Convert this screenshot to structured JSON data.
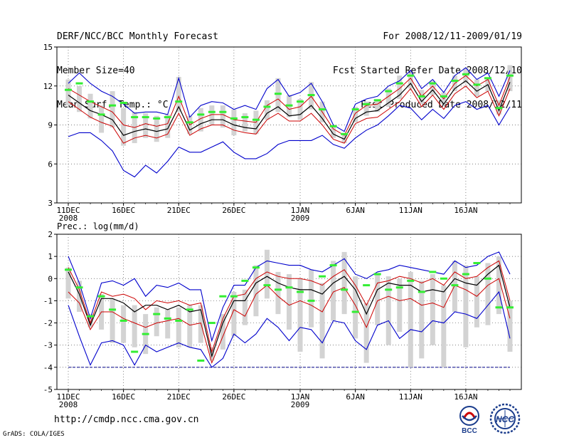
{
  "header": {
    "left": [
      "DERF/NCC/BCC Monthly Forecast",
      "Member Size=40",
      "Mean Surf. Temp.: °C"
    ],
    "right": [
      "For 2008/12/11-2009/01/19",
      "Fcst Started Refer Date 2008/12/10",
      "Fcst Produced Date 2008/12/11"
    ]
  },
  "footer": {
    "url": "http://cmdp.ncc.cma.gov.cn",
    "grads": "GrADS: COLA/IGES",
    "logo_left_text": "BCC",
    "logo_right_text": "NCC"
  },
  "colors": {
    "max_min": "#0000cc",
    "spread": "#cc0000",
    "mean": "#000000",
    "obs": "#33ee33",
    "box": "#d3d3d3",
    "zero_line": "#000088"
  },
  "chart_data": [
    {
      "type": "line",
      "title": "Mean Surf. Temp.: °C",
      "ylim": [
        3,
        15
      ],
      "yticks": [
        3,
        6,
        9,
        12,
        15
      ],
      "xticks": [
        {
          "day": 0,
          "label": "11DEC",
          "sub": "2008"
        },
        {
          "day": 5,
          "label": "16DEC",
          "sub": ""
        },
        {
          "day": 10,
          "label": "21DEC",
          "sub": ""
        },
        {
          "day": 15,
          "label": "26DEC",
          "sub": ""
        },
        {
          "day": 21,
          "label": "1JAN",
          "sub": "2009"
        },
        {
          "day": 26,
          "label": "6JAN",
          "sub": ""
        },
        {
          "day": 31,
          "label": "11JAN",
          "sub": ""
        },
        {
          "day": 36,
          "label": "16JAN",
          "sub": ""
        }
      ],
      "days": 40,
      "series": [
        {
          "name": "max",
          "values": [
            12.2,
            13.0,
            12.2,
            11.6,
            11.2,
            10.6,
            9.9,
            10.0,
            10.0,
            9.8,
            12.6,
            9.6,
            10.5,
            10.8,
            10.7,
            10.2,
            10.5,
            10.2,
            11.8,
            12.5,
            11.2,
            11.5,
            12.2,
            10.8,
            9.0,
            8.5,
            10.6,
            11.0,
            11.2,
            12.0,
            12.4,
            13.2,
            11.8,
            12.5,
            11.5,
            12.8,
            13.4,
            12.5,
            13.0,
            11.2,
            13.2
          ]
        },
        {
          "name": "upper",
          "values": [
            11.8,
            11.3,
            10.8,
            10.4,
            10.0,
            9.0,
            8.8,
            9.1,
            8.9,
            9.1,
            11.2,
            9.0,
            9.5,
            9.8,
            9.8,
            9.4,
            9.3,
            9.2,
            10.5,
            11.0,
            10.2,
            10.4,
            11.2,
            10.0,
            8.7,
            8.2,
            9.9,
            10.5,
            10.6,
            11.2,
            11.8,
            12.6,
            11.2,
            12.0,
            11.0,
            12.2,
            12.8,
            12.0,
            12.5,
            10.5,
            12.7
          ]
        },
        {
          "name": "mean",
          "values": [
            11.3,
            10.7,
            10.1,
            9.8,
            9.4,
            8.2,
            8.5,
            8.7,
            8.5,
            8.7,
            10.4,
            8.6,
            9.1,
            9.4,
            9.4,
            9.0,
            8.8,
            8.7,
            9.9,
            10.4,
            9.7,
            9.8,
            10.5,
            9.5,
            8.3,
            7.9,
            9.5,
            10.0,
            10.1,
            10.7,
            11.3,
            12.2,
            10.8,
            11.7,
            10.6,
            11.8,
            12.4,
            11.6,
            12.1,
            10.1,
            12.3
          ]
        },
        {
          "name": "lower",
          "values": [
            10.8,
            10.2,
            9.6,
            9.2,
            8.9,
            7.6,
            8.0,
            8.2,
            8.0,
            8.3,
            9.9,
            8.2,
            8.7,
            9.0,
            9.0,
            8.6,
            8.4,
            8.3,
            9.4,
            9.9,
            9.3,
            9.3,
            9.9,
            9.0,
            7.9,
            7.6,
            9.1,
            9.5,
            9.6,
            10.2,
            10.8,
            11.8,
            10.4,
            11.3,
            10.2,
            11.4,
            12.0,
            11.1,
            11.6,
            9.7,
            11.8
          ]
        },
        {
          "name": "min",
          "values": [
            8.1,
            8.4,
            8.4,
            7.8,
            7.0,
            5.5,
            5.0,
            5.9,
            5.3,
            6.2,
            7.3,
            6.9,
            6.9,
            7.3,
            7.7,
            6.9,
            6.4,
            6.4,
            6.8,
            7.5,
            7.8,
            7.8,
            7.8,
            8.2,
            7.5,
            7.2,
            8.0,
            8.6,
            9.0,
            9.7,
            10.5,
            10.3,
            9.4,
            10.2,
            9.5,
            10.5,
            10.8,
            10.2,
            10.5,
            9.0,
            10.4
          ]
        }
      ],
      "boxes": [
        [
          10.5,
          12.5
        ],
        [
          10.0,
          12.0
        ],
        [
          9.5,
          11.4
        ],
        [
          8.4,
          10.5
        ],
        [
          8.8,
          11.6
        ],
        [
          7.4,
          10.3
        ],
        [
          7.6,
          10.0
        ],
        [
          8.0,
          9.9
        ],
        [
          7.7,
          9.7
        ],
        [
          8.0,
          9.8
        ],
        [
          10.0,
          12.7
        ],
        [
          8.3,
          9.7
        ],
        [
          8.5,
          10.3
        ],
        [
          9.0,
          10.5
        ],
        [
          8.8,
          10.5
        ],
        [
          8.2,
          10.2
        ],
        [
          8.5,
          9.9
        ],
        [
          8.3,
          10.1
        ],
        [
          9.4,
          10.9
        ],
        [
          10.0,
          12.6
        ],
        [
          9.6,
          11.3
        ],
        [
          9.4,
          11.0
        ],
        [
          10.2,
          12.3
        ],
        [
          9.2,
          10.8
        ],
        [
          8.0,
          9.0
        ],
        [
          7.6,
          8.3
        ],
        [
          9.2,
          10.4
        ],
        [
          9.7,
          10.8
        ],
        [
          10.0,
          10.9
        ],
        [
          10.4,
          11.8
        ],
        [
          11.0,
          12.8
        ],
        [
          11.8,
          13.0
        ],
        [
          10.6,
          11.7
        ],
        [
          11.3,
          12.4
        ],
        [
          10.6,
          11.5
        ],
        [
          11.6,
          12.8
        ],
        [
          12.2,
          13.4
        ],
        [
          11.2,
          12.5
        ],
        [
          11.6,
          12.6
        ],
        [
          9.8,
          10.9
        ],
        [
          11.6,
          13.6
        ]
      ],
      "obs": [
        11.7,
        12.2,
        10.8,
        9.8,
        10.5,
        10.7,
        9.6,
        9.6,
        9.5,
        9.6,
        10.8,
        9.2,
        9.8,
        10.0,
        10.0,
        9.5,
        9.6,
        9.4,
        10.4,
        11.4,
        10.5,
        10.8,
        11.3,
        10.2,
        8.9,
        8.3,
        10.2,
        10.6,
        10.9,
        11.6,
        12.2,
        12.8,
        11.2,
        12.2,
        11.2,
        12.4,
        12.9,
        12.1,
        12.6,
        10.3,
        12.8
      ]
    },
    {
      "type": "line",
      "title": "Prec.: log(mm/d)",
      "ylim": [
        -5,
        2
      ],
      "yticks": [
        -5,
        -4,
        -3,
        -2,
        -1,
        0,
        1,
        2
      ],
      "xticks": [
        {
          "day": 0,
          "label": "11DEC",
          "sub": "2008"
        },
        {
          "day": 5,
          "label": "16DEC",
          "sub": ""
        },
        {
          "day": 10,
          "label": "21DEC",
          "sub": ""
        },
        {
          "day": 15,
          "label": "26DEC",
          "sub": ""
        },
        {
          "day": 21,
          "label": "1JAN",
          "sub": "2009"
        },
        {
          "day": 26,
          "label": "6JAN",
          "sub": ""
        },
        {
          "day": 31,
          "label": "11JAN",
          "sub": ""
        },
        {
          "day": 36,
          "label": "16JAN",
          "sub": ""
        }
      ],
      "days": 40,
      "baseline": -4,
      "series": [
        {
          "name": "max",
          "values": [
            1.0,
            -0.2,
            -1.8,
            -0.2,
            -0.1,
            -0.3,
            0.0,
            -0.8,
            -0.3,
            -0.4,
            -0.2,
            -0.5,
            -0.5,
            -2.8,
            -1.3,
            -0.3,
            -0.3,
            0.5,
            0.8,
            0.7,
            0.6,
            0.6,
            0.4,
            0.3,
            0.6,
            0.9,
            0.2,
            0.0,
            0.3,
            0.4,
            0.6,
            0.5,
            0.4,
            0.3,
            0.2,
            0.8,
            0.5,
            0.6,
            1.0,
            1.2,
            0.2
          ]
        },
        {
          "name": "upper",
          "values": [
            0.5,
            -0.5,
            -2.0,
            -0.6,
            -0.8,
            -0.7,
            -0.9,
            -1.4,
            -1.0,
            -1.1,
            -1.0,
            -1.2,
            -1.1,
            -3.3,
            -1.8,
            -0.8,
            -0.7,
            0.0,
            0.3,
            0.1,
            0.0,
            0.0,
            -0.1,
            -0.3,
            0.1,
            0.4,
            -0.3,
            -1.2,
            -0.2,
            -0.1,
            0.1,
            0.0,
            -0.2,
            0.0,
            -0.3,
            0.3,
            0.0,
            0.1,
            0.5,
            0.8,
            -1.0
          ]
        },
        {
          "name": "mean",
          "values": [
            0.3,
            -0.7,
            -2.1,
            -0.9,
            -0.9,
            -1.1,
            -1.5,
            -1.2,
            -1.2,
            -1.4,
            -1.2,
            -1.5,
            -1.4,
            -3.5,
            -2.0,
            -1.0,
            -1.0,
            -0.2,
            0.1,
            -0.2,
            -0.4,
            -0.5,
            -0.5,
            -0.7,
            -0.2,
            0.1,
            -0.5,
            -1.6,
            -0.5,
            -0.2,
            -0.3,
            -0.3,
            -0.6,
            -0.5,
            -0.6,
            0.0,
            -0.2,
            -0.3,
            0.2,
            0.6,
            -1.3
          ]
        },
        {
          "name": "lower",
          "values": [
            -0.6,
            -1.1,
            -2.3,
            -1.5,
            -1.5,
            -1.8,
            -2.0,
            -2.2,
            -2.0,
            -1.9,
            -1.8,
            -2.1,
            -2.0,
            -3.8,
            -2.6,
            -1.4,
            -1.7,
            -0.7,
            -0.3,
            -0.8,
            -1.2,
            -1.0,
            -1.2,
            -1.5,
            -0.6,
            -0.4,
            -1.2,
            -2.2,
            -1.0,
            -0.8,
            -1.0,
            -0.9,
            -1.2,
            -1.1,
            -1.3,
            -0.3,
            -0.5,
            -0.8,
            -0.3,
            0.0,
            -1.8
          ]
        },
        {
          "name": "min",
          "values": [
            -1.2,
            -2.6,
            -3.9,
            -2.9,
            -2.8,
            -3.0,
            -3.9,
            -3.0,
            -3.3,
            -3.1,
            -2.9,
            -3.1,
            -3.2,
            -4.0,
            -3.6,
            -2.5,
            -2.9,
            -2.5,
            -1.8,
            -2.2,
            -2.8,
            -2.2,
            -2.3,
            -2.9,
            -1.9,
            -2.0,
            -2.8,
            -3.2,
            -2.1,
            -1.9,
            -2.7,
            -2.3,
            -2.4,
            -1.9,
            -2.0,
            -1.5,
            -1.6,
            -1.8,
            -1.2,
            -0.6,
            -2.7
          ]
        }
      ],
      "boxes": [
        [
          -0.9,
          0.5
        ],
        [
          -1.5,
          -0.1
        ],
        [
          -2.2,
          -1.6
        ],
        [
          -2.3,
          -0.7
        ],
        [
          -2.9,
          -0.9
        ],
        [
          -2.9,
          -1.2
        ],
        [
          -3.1,
          -1.2
        ],
        [
          -3.4,
          -1.6
        ],
        [
          -2.6,
          -1.3
        ],
        [
          -2.7,
          -1.4
        ],
        [
          -3.1,
          -1.3
        ],
        [
          -3.1,
          -1.2
        ],
        [
          -2.9,
          -1.2
        ],
        [
          -3.7,
          -3.1
        ],
        [
          -3.2,
          -1.6
        ],
        [
          -2.6,
          -0.6
        ],
        [
          -2.1,
          -0.5
        ],
        [
          -1.7,
          0.6
        ],
        [
          -0.9,
          1.3
        ],
        [
          -1.6,
          0.3
        ],
        [
          -2.3,
          0.2
        ],
        [
          -3.3,
          0.0
        ],
        [
          -2.2,
          0.4
        ],
        [
          -3.6,
          -0.2
        ],
        [
          -1.9,
          0.8
        ],
        [
          -1.6,
          1.2
        ],
        [
          -2.7,
          0.1
        ],
        [
          -3.8,
          -1.1
        ],
        [
          -2.1,
          0.2
        ],
        [
          -3.0,
          0.1
        ],
        [
          -2.4,
          0.0
        ],
        [
          -4.0,
          0.3
        ],
        [
          -3.6,
          -0.1
        ],
        [
          -3.0,
          0.2
        ],
        [
          -4.0,
          -0.3
        ],
        [
          -1.5,
          0.8
        ],
        [
          -3.1,
          0.6
        ],
        [
          -2.2,
          0.1
        ],
        [
          -2.1,
          0.7
        ],
        [
          -1.6,
          1.0
        ],
        [
          -3.3,
          -1.0
        ]
      ],
      "obs": [
        0.4,
        -0.4,
        -1.7,
        -0.8,
        -1.4,
        -1.9,
        -3.3,
        -2.5,
        -1.6,
        -1.8,
        -1.9,
        -1.4,
        -3.7,
        -2.0,
        -0.8,
        -0.8,
        -0.1,
        0.5,
        -0.3,
        -0.5,
        -0.4,
        -0.6,
        -1.0,
        0.1,
        0.6,
        -0.5,
        -1.5,
        -0.3,
        0.2,
        -0.5,
        -0.4,
        -0.1,
        -0.6,
        0.3,
        0.0,
        -0.3,
        0.2,
        0.7,
        0.0,
        -1.3,
        -1.3
      ]
    }
  ]
}
